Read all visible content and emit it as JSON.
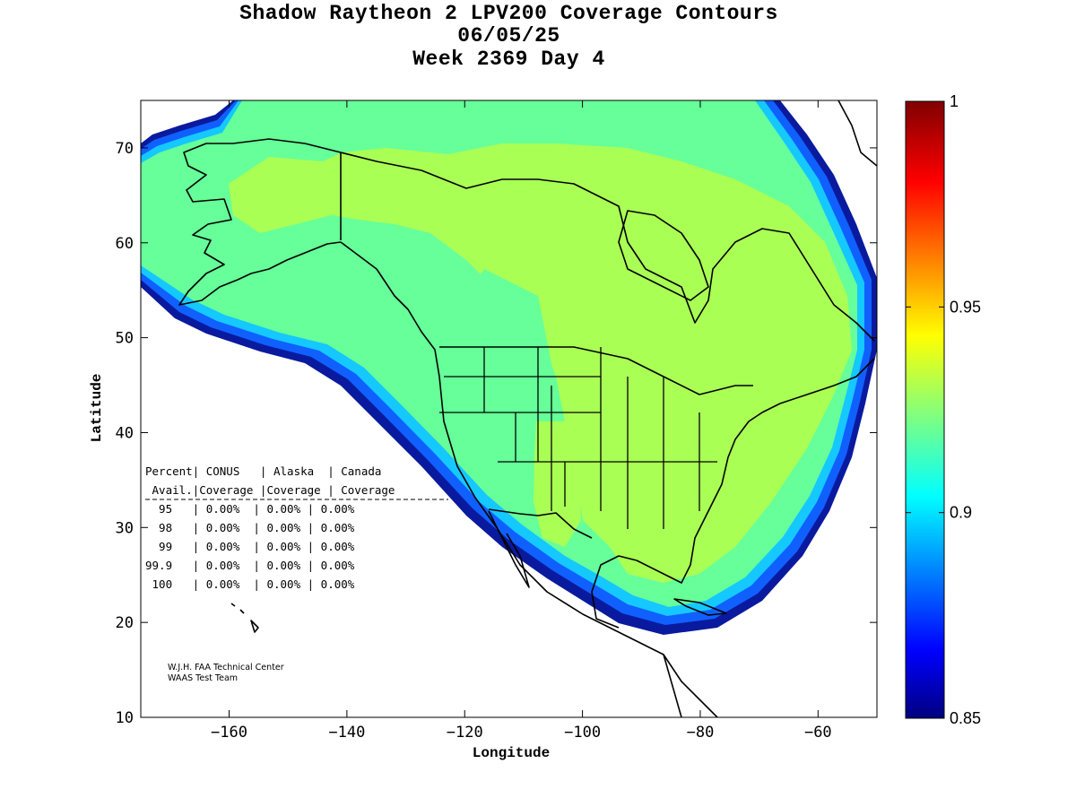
{
  "title": {
    "line1": "Shadow Raytheon 2 LPV200 Coverage Contours",
    "line2": "06/05/25",
    "line3": "Week 2369 Day 4"
  },
  "axes": {
    "xlabel": "Longitude",
    "ylabel": "Latitude",
    "xlim": [
      -175,
      -50
    ],
    "ylim": [
      10,
      75
    ],
    "xticks": [
      -160,
      -140,
      -120,
      -100,
      -80,
      -60
    ],
    "yticks": [
      10,
      20,
      30,
      40,
      50,
      60,
      70
    ]
  },
  "colorbar": {
    "range": [
      0.85,
      1
    ],
    "ticks": [
      {
        "value": 0.85,
        "label": "0.85"
      },
      {
        "value": 0.9,
        "label": "0.9"
      },
      {
        "value": 0.95,
        "label": "0.95"
      },
      {
        "value": 1,
        "label": "1"
      }
    ]
  },
  "stats_table": {
    "header1": "Percent| CONUS   | Alaska  | Canada",
    "header2": " Avail.|Coverage |Coverage | Coverage",
    "rows": [
      "  95   | 0.00%  | 0.00% | 0.00%",
      "  98   | 0.00%  | 0.00% | 0.00%",
      "  99   | 0.00%  | 0.00% | 0.00%",
      "99.9   | 0.00%  | 0.00% | 0.00%",
      " 100   | 0.00%  | 0.00% | 0.00%"
    ]
  },
  "credits": {
    "line1": "W.J.H. FAA Technical Center",
    "line2": "WAAS Test Team"
  },
  "colors": {
    "outer_band_dark": "#00008f",
    "outer_band_mid": "#0050ff",
    "outer_band_light": "#00bfff",
    "coverage_main": "#66ff99",
    "coverage_high": "#aaff55",
    "boundary": "#000000"
  }
}
